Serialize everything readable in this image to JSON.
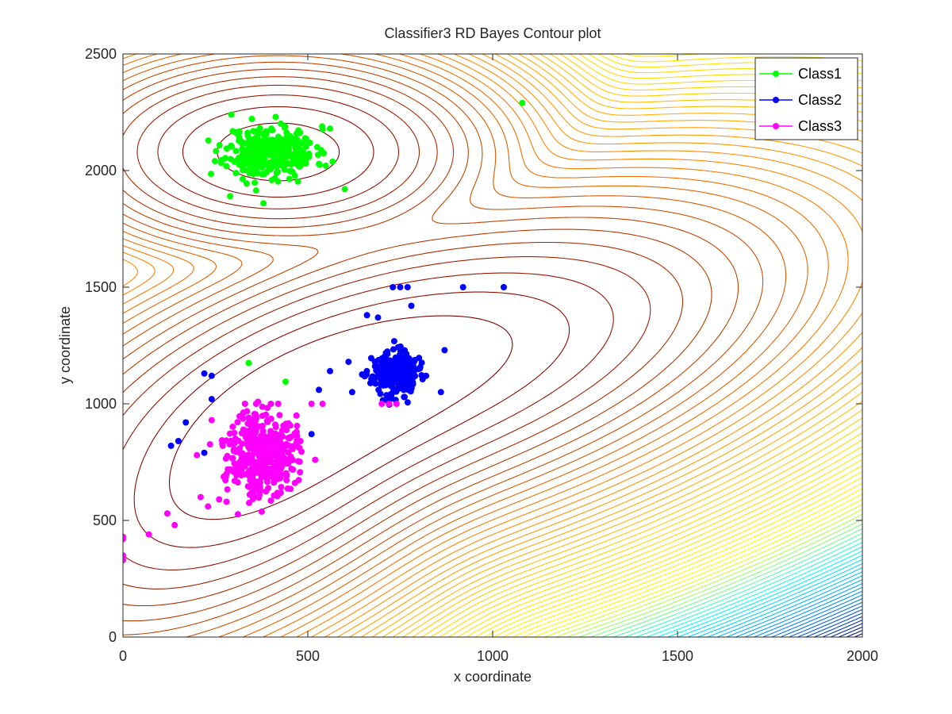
{
  "chart_data": {
    "type": "scatter",
    "title": "Classifier3 RD Bayes Contour plot",
    "xlabel": "x coordinate",
    "ylabel": "y coordinate",
    "xlim": [
      0,
      2000
    ],
    "ylim": [
      0,
      2500
    ],
    "xticks": [
      0,
      500,
      1000,
      1500,
      2000
    ],
    "yticks": [
      0,
      500,
      1000,
      1500,
      2000,
      2500
    ],
    "xtick_labels": [
      "0",
      "500",
      "1000",
      "1500",
      "2000"
    ],
    "ytick_labels": [
      "0",
      "500",
      "1000",
      "1500",
      "2000",
      "2500"
    ],
    "grid": false,
    "legend_position": "top-right",
    "contour": {
      "colormap": "parula",
      "dominant_low_color": "#800000",
      "dominant_high_color": "#000080",
      "gaussians": [
        {
          "cx": 420,
          "cy": 2080,
          "sx": 200,
          "sy": 150,
          "rho": 0.0
        },
        {
          "cx": 740,
          "cy": 1130,
          "sx": 360,
          "sy": 260,
          "rho": 0.55
        },
        {
          "cx": 380,
          "cy": 780,
          "sx": 250,
          "sy": 300,
          "rho": 0.6
        }
      ]
    },
    "series": [
      {
        "name": "Class1",
        "color": "#00ff00",
        "cluster": {
          "cx": 400,
          "cy": 2080,
          "sx": 60,
          "sy": 55,
          "n": 330,
          "seed": 11
        },
        "extra_points": [
          [
            1080,
            2290
          ],
          [
            340,
            1175
          ],
          [
            440,
            1095
          ],
          [
            600,
            1920
          ],
          [
            560,
            2180
          ],
          [
            290,
            1890
          ],
          [
            380,
            1860
          ]
        ]
      },
      {
        "name": "Class2",
        "color": "#0000ff",
        "cluster": {
          "cx": 735,
          "cy": 1130,
          "sx": 30,
          "sy": 45,
          "n": 300,
          "seed": 23
        },
        "extra_points": [
          [
            730,
            1500
          ],
          [
            750,
            1500
          ],
          [
            770,
            1500
          ],
          [
            920,
            1500
          ],
          [
            1030,
            1500
          ],
          [
            660,
            1380
          ],
          [
            690,
            1370
          ],
          [
            780,
            1420
          ],
          [
            610,
            1180
          ],
          [
            560,
            1140
          ],
          [
            530,
            1060
          ],
          [
            860,
            1050
          ],
          [
            620,
            1050
          ],
          [
            240,
            1020
          ],
          [
            220,
            1130
          ],
          [
            240,
            1120
          ],
          [
            170,
            920
          ],
          [
            130,
            820
          ],
          [
            150,
            840
          ],
          [
            220,
            790
          ],
          [
            510,
            870
          ],
          [
            820,
            1120
          ],
          [
            870,
            1230
          ]
        ]
      },
      {
        "name": "Class3",
        "color": "#ff00ff",
        "cluster": {
          "cx": 375,
          "cy": 790,
          "sx": 45,
          "sy": 90,
          "n": 380,
          "seed": 37
        },
        "extra_points": [
          [
            0,
            330
          ],
          [
            0,
            350
          ],
          [
            0,
            420
          ],
          [
            0,
            430
          ],
          [
            70,
            440
          ],
          [
            120,
            530
          ],
          [
            140,
            480
          ],
          [
            210,
            600
          ],
          [
            230,
            560
          ],
          [
            260,
            590
          ],
          [
            280,
            580
          ],
          [
            200,
            780
          ],
          [
            240,
            930
          ],
          [
            330,
            1000
          ],
          [
            360,
            1000
          ],
          [
            400,
            1000
          ],
          [
            420,
            1000
          ],
          [
            510,
            1000
          ],
          [
            540,
            1000
          ],
          [
            700,
            1000
          ],
          [
            720,
            1000
          ],
          [
            740,
            1000
          ],
          [
            270,
            820
          ],
          [
            480,
            840
          ],
          [
            470,
            880
          ],
          [
            520,
            760
          ],
          [
            280,
            700
          ]
        ]
      }
    ]
  }
}
